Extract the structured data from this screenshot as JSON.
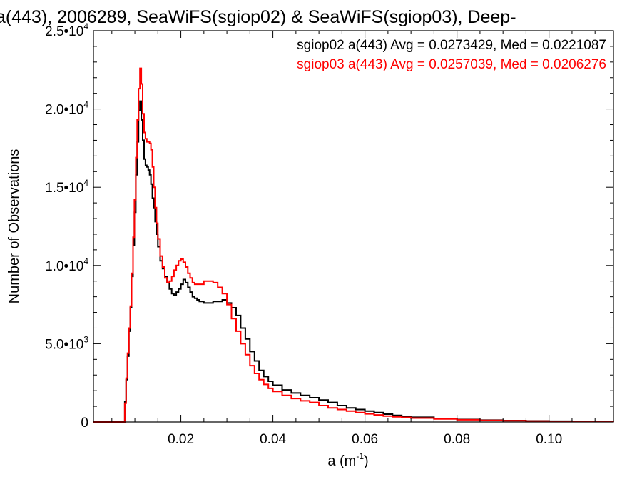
{
  "chart_data": {
    "type": "line",
    "title": "a(443), 2006289, SeaWiFS(sgiop02) & SeaWiFS(sgiop03), Deep-",
    "xlabel": "a (m",
    "xlabel_sup": "-1",
    "xlabel_close": ")",
    "ylabel": "Number of Observations",
    "xlim": [
      0.001,
      0.114
    ],
    "ylim": [
      0,
      25000
    ],
    "x_ticks": [
      {
        "value": 0.02,
        "label": "0.02"
      },
      {
        "value": 0.04,
        "label": "0.04"
      },
      {
        "value": 0.06,
        "label": "0.06"
      },
      {
        "value": 0.08,
        "label": "0.08"
      },
      {
        "value": 0.1,
        "label": "0.10"
      }
    ],
    "y_ticks": [
      {
        "value": 0,
        "mant": "0",
        "exp": ""
      },
      {
        "value": 5000,
        "mant": "5.0•10",
        "exp": "3"
      },
      {
        "value": 10000,
        "mant": "1.0•10",
        "exp": "4"
      },
      {
        "value": 15000,
        "mant": "1.5•10",
        "exp": "4"
      },
      {
        "value": 20000,
        "mant": "2.0•10",
        "exp": "4"
      },
      {
        "value": 25000,
        "mant": "2.5•10",
        "exp": "4"
      }
    ],
    "grid": false,
    "legend_position": "top-right",
    "series": [
      {
        "name": "sgiop02 a(443) Avg = 0.0273429, Med = 0.0221087",
        "color": "#000000",
        "points": [
          [
            0.001,
            0
          ],
          [
            0.0075,
            0
          ],
          [
            0.0078,
            1300
          ],
          [
            0.0081,
            2700
          ],
          [
            0.0084,
            4200
          ],
          [
            0.0087,
            5800
          ],
          [
            0.009,
            7300
          ],
          [
            0.0093,
            9300
          ],
          [
            0.0096,
            11300
          ],
          [
            0.0099,
            13400
          ],
          [
            0.0102,
            15800
          ],
          [
            0.0105,
            17900
          ],
          [
            0.0108,
            19900
          ],
          [
            0.0111,
            20500
          ],
          [
            0.0114,
            19300
          ],
          [
            0.0117,
            18000
          ],
          [
            0.012,
            16800
          ],
          [
            0.0123,
            16400
          ],
          [
            0.0126,
            16300
          ],
          [
            0.0129,
            16100
          ],
          [
            0.0132,
            15800
          ],
          [
            0.0135,
            15200
          ],
          [
            0.0138,
            14300
          ],
          [
            0.0141,
            13700
          ],
          [
            0.0144,
            12800
          ],
          [
            0.0147,
            12000
          ],
          [
            0.015,
            11200
          ],
          [
            0.0155,
            10300
          ],
          [
            0.016,
            9800
          ],
          [
            0.0165,
            9300
          ],
          [
            0.017,
            8900
          ],
          [
            0.0175,
            8500
          ],
          [
            0.018,
            8200
          ],
          [
            0.0185,
            8100
          ],
          [
            0.019,
            8300
          ],
          [
            0.0195,
            8500
          ],
          [
            0.02,
            8800
          ],
          [
            0.0205,
            9100
          ],
          [
            0.021,
            8900
          ],
          [
            0.0215,
            8600
          ],
          [
            0.022,
            8300
          ],
          [
            0.0225,
            8000
          ],
          [
            0.023,
            7900
          ],
          [
            0.0235,
            7800
          ],
          [
            0.024,
            7700
          ],
          [
            0.025,
            7600
          ],
          [
            0.026,
            7600
          ],
          [
            0.027,
            7700
          ],
          [
            0.028,
            7700
          ],
          [
            0.029,
            7800
          ],
          [
            0.03,
            7600
          ],
          [
            0.031,
            7300
          ],
          [
            0.032,
            6800
          ],
          [
            0.033,
            6000
          ],
          [
            0.034,
            5300
          ],
          [
            0.035,
            4500
          ],
          [
            0.036,
            3900
          ],
          [
            0.037,
            3300
          ],
          [
            0.038,
            2900
          ],
          [
            0.039,
            2600
          ],
          [
            0.04,
            2350
          ],
          [
            0.042,
            2050
          ],
          [
            0.044,
            1850
          ],
          [
            0.046,
            1700
          ],
          [
            0.048,
            1550
          ],
          [
            0.05,
            1400
          ],
          [
            0.052,
            1250
          ],
          [
            0.054,
            1050
          ],
          [
            0.056,
            900
          ],
          [
            0.058,
            800
          ],
          [
            0.06,
            700
          ],
          [
            0.062,
            600
          ],
          [
            0.064,
            500
          ],
          [
            0.066,
            420
          ],
          [
            0.068,
            360
          ],
          [
            0.07,
            300
          ],
          [
            0.075,
            220
          ],
          [
            0.08,
            160
          ],
          [
            0.085,
            120
          ],
          [
            0.09,
            90
          ],
          [
            0.095,
            70
          ],
          [
            0.1,
            50
          ],
          [
            0.105,
            40
          ],
          [
            0.11,
            30
          ],
          [
            0.114,
            20
          ]
        ]
      },
      {
        "name": "sgiop03 a(443) Avg = 0.0257039, Med = 0.0206276",
        "color": "#ff0000",
        "points": [
          [
            0.001,
            0
          ],
          [
            0.0075,
            0
          ],
          [
            0.0078,
            1200
          ],
          [
            0.0081,
            2800
          ],
          [
            0.0084,
            4400
          ],
          [
            0.0087,
            6000
          ],
          [
            0.009,
            7400
          ],
          [
            0.0093,
            9500
          ],
          [
            0.0096,
            11800
          ],
          [
            0.0099,
            14200
          ],
          [
            0.0102,
            16900
          ],
          [
            0.0105,
            19300
          ],
          [
            0.0108,
            21300
          ],
          [
            0.0111,
            22600
          ],
          [
            0.0114,
            21600
          ],
          [
            0.0117,
            19700
          ],
          [
            0.012,
            18500
          ],
          [
            0.0123,
            18100
          ],
          [
            0.0126,
            17900
          ],
          [
            0.0129,
            17900
          ],
          [
            0.0132,
            17800
          ],
          [
            0.0135,
            17400
          ],
          [
            0.0138,
            16300
          ],
          [
            0.0141,
            15000
          ],
          [
            0.0144,
            13700
          ],
          [
            0.0147,
            12700
          ],
          [
            0.015,
            11700
          ],
          [
            0.0155,
            10600
          ],
          [
            0.016,
            9900
          ],
          [
            0.0165,
            9200
          ],
          [
            0.017,
            8900
          ],
          [
            0.0175,
            9000
          ],
          [
            0.018,
            9300
          ],
          [
            0.0185,
            9700
          ],
          [
            0.019,
            10000
          ],
          [
            0.0195,
            10300
          ],
          [
            0.02,
            10400
          ],
          [
            0.0205,
            10200
          ],
          [
            0.021,
            9900
          ],
          [
            0.0215,
            9500
          ],
          [
            0.022,
            9200
          ],
          [
            0.0225,
            8900
          ],
          [
            0.023,
            8800
          ],
          [
            0.024,
            8800
          ],
          [
            0.025,
            9000
          ],
          [
            0.026,
            9000
          ],
          [
            0.027,
            8900
          ],
          [
            0.028,
            8600
          ],
          [
            0.029,
            8200
          ],
          [
            0.03,
            7500
          ],
          [
            0.031,
            6600
          ],
          [
            0.032,
            5800
          ],
          [
            0.033,
            5000
          ],
          [
            0.034,
            4300
          ],
          [
            0.035,
            3600
          ],
          [
            0.036,
            3100
          ],
          [
            0.037,
            2700
          ],
          [
            0.038,
            2400
          ],
          [
            0.039,
            2150
          ],
          [
            0.04,
            1950
          ],
          [
            0.042,
            1700
          ],
          [
            0.044,
            1500
          ],
          [
            0.046,
            1350
          ],
          [
            0.048,
            1250
          ],
          [
            0.05,
            1050
          ],
          [
            0.052,
            900
          ],
          [
            0.054,
            800
          ],
          [
            0.056,
            700
          ],
          [
            0.058,
            600
          ],
          [
            0.06,
            520
          ],
          [
            0.062,
            450
          ],
          [
            0.064,
            380
          ],
          [
            0.066,
            330
          ],
          [
            0.068,
            290
          ],
          [
            0.07,
            250
          ],
          [
            0.075,
            190
          ],
          [
            0.08,
            140
          ],
          [
            0.085,
            100
          ],
          [
            0.09,
            80
          ],
          [
            0.095,
            60
          ],
          [
            0.1,
            45
          ],
          [
            0.105,
            35
          ],
          [
            0.11,
            25
          ],
          [
            0.114,
            15
          ]
        ]
      }
    ]
  }
}
